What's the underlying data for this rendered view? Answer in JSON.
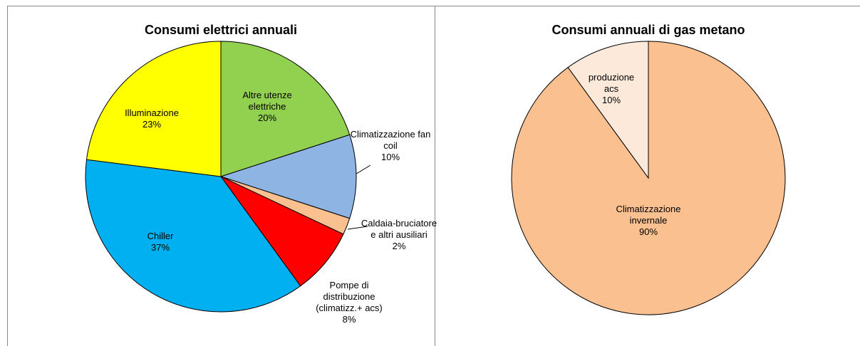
{
  "chart_data": [
    {
      "type": "pie",
      "title": "Consumi elettrici annuali",
      "categories": [
        "Altre utenze elettriche",
        "Climatizzazione fan coil",
        "Caldaia-bruciatore e altri ausiliari",
        "Pompe di distribuzione (climatizz.+ acs)",
        "Chiller",
        "Illuminazione"
      ],
      "values": [
        20,
        10,
        2,
        8,
        37,
        23
      ],
      "value_labels": [
        "20%",
        "10%",
        "2%",
        "8%",
        "37%",
        "23%"
      ],
      "colors": [
        "#92d050",
        "#8eb4e3",
        "#fac090",
        "#ff0000",
        "#00b0f0",
        "#ffff00"
      ]
    },
    {
      "type": "pie",
      "title": "Consumi annuali di gas metano",
      "categories": [
        "Climatizzazione invernale",
        "produzione acs"
      ],
      "values": [
        90,
        10
      ],
      "value_labels": [
        "90%",
        "10%"
      ],
      "colors": [
        "#fac090",
        "#fde9d9"
      ]
    }
  ]
}
